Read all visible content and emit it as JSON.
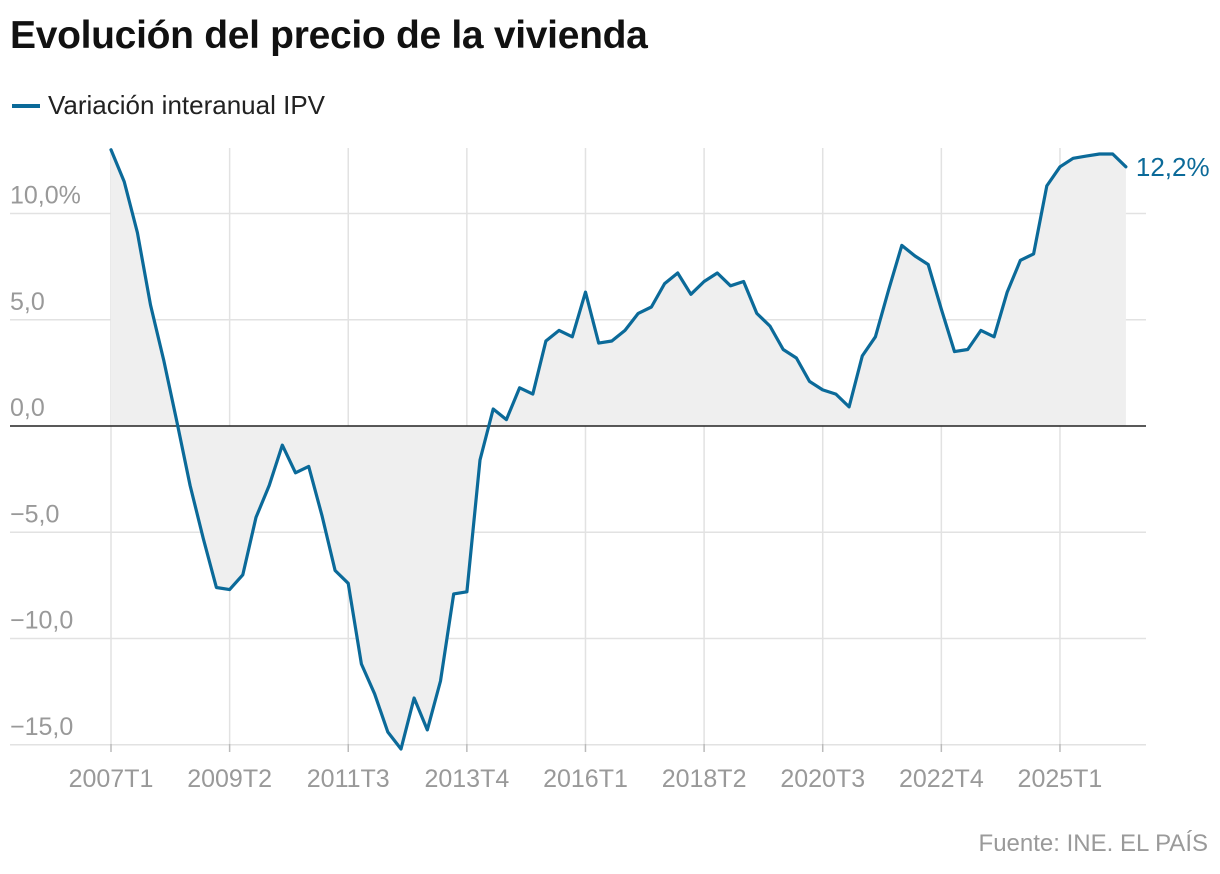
{
  "title": "Evolución del precio de la vivienda",
  "source": "Fuente: INE. EL PAÍS",
  "colors": {
    "line": "#0b6a99",
    "fill": "#efefef",
    "grid": "#e2e2e2",
    "zero": "#222222",
    "tick": "#999999"
  },
  "chart_data": {
    "type": "area",
    "title": "Evolución del precio de la vivienda",
    "xlabel": "",
    "ylabel": "",
    "ylim": [
      -15,
      13
    ],
    "grid": true,
    "legend_position": "top-left",
    "y_ticks": [
      10,
      5,
      0,
      -5,
      -10,
      -15
    ],
    "y_tick_labels": [
      "10,0%",
      "5,0",
      "0,0",
      "−5,0",
      "−10,0",
      "−15,0"
    ],
    "x_tick_labels": [
      "2007T1",
      "2009T2",
      "2011T3",
      "2013T4",
      "2016T1",
      "2018T2",
      "2020T3",
      "2022T4",
      "2025T1"
    ],
    "end_label": "12,2%",
    "x": [
      "2007T1",
      "2007T2",
      "2007T3",
      "2007T4",
      "2008T1",
      "2008T2",
      "2008T3",
      "2008T4",
      "2009T1",
      "2009T2",
      "2009T3",
      "2009T4",
      "2010T1",
      "2010T2",
      "2010T3",
      "2010T4",
      "2011T1",
      "2011T2",
      "2011T3",
      "2011T4",
      "2012T1",
      "2012T2",
      "2012T3",
      "2012T4",
      "2013T1",
      "2013T2",
      "2013T3",
      "2013T4",
      "2014T1",
      "2014T2",
      "2014T3",
      "2014T4",
      "2015T1",
      "2015T2",
      "2015T3",
      "2015T4",
      "2016T1",
      "2016T2",
      "2016T3",
      "2016T4",
      "2017T1",
      "2017T2",
      "2017T3",
      "2017T4",
      "2018T1",
      "2018T2",
      "2018T3",
      "2018T4",
      "2019T1",
      "2019T2",
      "2019T3",
      "2019T4",
      "2020T1",
      "2020T2",
      "2020T3",
      "2020T4",
      "2021T1",
      "2021T2",
      "2021T3",
      "2021T4",
      "2022T1",
      "2022T2",
      "2022T3",
      "2022T4",
      "2023T1",
      "2023T2",
      "2023T3",
      "2023T4",
      "2024T1",
      "2024T2",
      "2024T3",
      "2024T4",
      "2025T1",
      "2025T2",
      "2025T3",
      "2025T4",
      "2026T1",
      "2026T2"
    ],
    "series": [
      {
        "name": "Variación interanual IPV",
        "values": [
          13.0,
          11.5,
          9.1,
          5.7,
          3.1,
          0.2,
          -2.8,
          -5.3,
          -7.6,
          -7.7,
          -7.0,
          -4.3,
          -2.8,
          -0.9,
          -2.2,
          -1.9,
          -4.2,
          -6.8,
          -7.4,
          -11.2,
          -12.6,
          -14.4,
          -15.2,
          -12.8,
          -14.3,
          -12.0,
          -7.9,
          -7.8,
          -1.6,
          0.8,
          0.3,
          1.8,
          1.5,
          4.0,
          4.5,
          4.2,
          6.3,
          3.9,
          4.0,
          4.5,
          5.3,
          5.6,
          6.7,
          7.2,
          6.2,
          6.8,
          7.2,
          6.6,
          6.8,
          5.3,
          4.7,
          3.6,
          3.2,
          2.1,
          1.7,
          1.5,
          0.9,
          3.3,
          4.2,
          6.4,
          8.5,
          8.0,
          7.6,
          5.5,
          3.5,
          3.6,
          4.5,
          4.2,
          6.3,
          7.8,
          8.1,
          11.3,
          12.2,
          12.6,
          12.7,
          12.8,
          12.8,
          12.2
        ]
      }
    ]
  }
}
